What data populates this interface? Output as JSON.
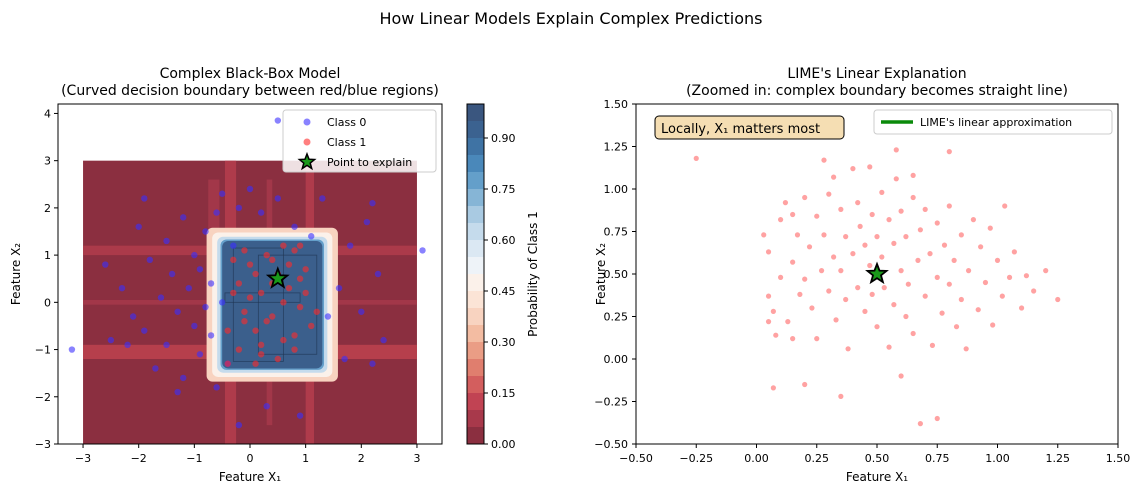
{
  "figure": {
    "suptitle": "How Linear Models Explain Complex Predictions"
  },
  "chart_data": [
    {
      "type": "scatter",
      "title_line1": "Complex Black-Box Model",
      "title_line2": "(Curved decision boundary between red/blue regions)",
      "xlabel": "Feature X₁",
      "ylabel": "Feature X₂",
      "xlim": [
        -3.45,
        3.45
      ],
      "ylim": [
        -3.0,
        4.2
      ],
      "xticks": [
        -3,
        -2,
        -1,
        0,
        1,
        2,
        3
      ],
      "yticks": [
        -3,
        -2,
        -1,
        0,
        1,
        2,
        3,
        4
      ],
      "contour_fill": {
        "description": "filled contour of P(class 1), low = dark red, high = dark blue",
        "x_range": [
          -3,
          3
        ],
        "y_range": [
          -3,
          3
        ],
        "high_region": {
          "x": [
            -0.5,
            1.3
          ],
          "y": [
            -1.4,
            1.3
          ]
        },
        "high_color": "#3b5f8c",
        "low_color": "#8b2f40"
      },
      "colorbar": {
        "label": "Probability of Class 1",
        "ticks": [
          "0.00",
          "0.15",
          "0.30",
          "0.45",
          "0.60",
          "0.75",
          "0.90"
        ],
        "levels": [
          0.0,
          0.05,
          0.1,
          0.15,
          0.2,
          0.25,
          0.3,
          0.35,
          0.4,
          0.45,
          0.5,
          0.55,
          0.6,
          0.65,
          0.7,
          0.75,
          0.8,
          0.85,
          0.9,
          0.95,
          1.0
        ],
        "colors": [
          "#8b2f40",
          "#a8394b",
          "#c14353",
          "#d35e5e",
          "#e07e6e",
          "#ea9d85",
          "#f3bca2",
          "#f8d3c0",
          "#fbe4d6",
          "#fbf1ea",
          "#eef3f8",
          "#dbe8f3",
          "#c5dbec",
          "#a9cae2",
          "#86b5d6",
          "#649fca",
          "#4a88ba",
          "#3f73a4",
          "#3b6290",
          "#3a567f"
        ]
      },
      "legend": {
        "placement": "upper right",
        "entries": [
          "Class 0",
          "Class 1",
          "Point to explain"
        ]
      },
      "series": [
        {
          "name": "Class 0",
          "color": "#3b2fff",
          "points": [
            [
              -3.2,
              -1.0
            ],
            [
              3.1,
              1.1
            ],
            [
              0.5,
              3.85
            ],
            [
              -2.6,
              0.8
            ],
            [
              -2.5,
              -0.8
            ],
            [
              -2.3,
              0.3
            ],
            [
              -2.1,
              -0.3
            ],
            [
              -2.0,
              1.6
            ],
            [
              -1.9,
              -0.6
            ],
            [
              -1.8,
              0.9
            ],
            [
              -1.7,
              -1.4
            ],
            [
              -1.6,
              0.1
            ],
            [
              -1.5,
              1.3
            ],
            [
              -1.5,
              -0.9
            ],
            [
              -1.4,
              0.6
            ],
            [
              -1.3,
              -0.2
            ],
            [
              -1.2,
              1.8
            ],
            [
              -1.2,
              -1.6
            ],
            [
              -1.1,
              0.3
            ],
            [
              -1.0,
              -0.5
            ],
            [
              -1.0,
              1.0
            ],
            [
              -0.9,
              -1.1
            ],
            [
              -0.9,
              0.7
            ],
            [
              -0.8,
              -0.1
            ],
            [
              -0.8,
              1.5
            ],
            [
              -0.7,
              -0.7
            ],
            [
              -0.7,
              0.4
            ],
            [
              -0.6,
              1.9
            ],
            [
              -0.6,
              -1.8
            ],
            [
              -0.5,
              0.0
            ],
            [
              -0.5,
              2.3
            ],
            [
              -0.4,
              -1.3
            ],
            [
              -0.3,
              1.2
            ],
            [
              -0.2,
              2.0
            ],
            [
              0.0,
              2.4
            ],
            [
              0.2,
              1.9
            ],
            [
              0.3,
              -2.2
            ],
            [
              0.5,
              2.2
            ],
            [
              0.8,
              1.6
            ],
            [
              1.1,
              1.4
            ],
            [
              1.3,
              2.2
            ],
            [
              1.4,
              -0.3
            ],
            [
              1.6,
              0.3
            ],
            [
              1.7,
              -1.2
            ],
            [
              1.8,
              1.2
            ],
            [
              2.0,
              -0.2
            ],
            [
              2.1,
              1.7
            ],
            [
              2.2,
              -1.3
            ],
            [
              2.3,
              0.6
            ],
            [
              2.4,
              -0.8
            ],
            [
              2.2,
              2.1
            ],
            [
              -1.9,
              2.2
            ],
            [
              -2.2,
              -0.9
            ],
            [
              -1.3,
              -1.9
            ],
            [
              -0.2,
              -2.6
            ],
            [
              0.9,
              -2.4
            ]
          ]
        },
        {
          "name": "Class 1",
          "color": "#ff2a2a",
          "points": [
            [
              -0.3,
              0.9
            ],
            [
              -0.2,
              0.4
            ],
            [
              -0.1,
              -0.2
            ],
            [
              0.0,
              0.8
            ],
            [
              0.1,
              -0.6
            ],
            [
              0.2,
              0.2
            ],
            [
              0.3,
              1.0
            ],
            [
              0.4,
              -0.3
            ],
            [
              0.5,
              0.6
            ],
            [
              0.6,
              -0.8
            ],
            [
              0.7,
              0.3
            ],
            [
              0.8,
              1.1
            ],
            [
              0.9,
              -0.1
            ],
            [
              1.0,
              0.7
            ],
            [
              1.1,
              -0.5
            ],
            [
              -0.4,
              -0.6
            ],
            [
              -0.2,
              -1.0
            ],
            [
              0.0,
              0.1
            ],
            [
              0.2,
              -1.1
            ],
            [
              0.4,
              0.9
            ],
            [
              0.6,
              0.0
            ],
            [
              0.8,
              -0.7
            ],
            [
              1.0,
              0.2
            ],
            [
              -0.1,
              1.1
            ],
            [
              0.3,
              -0.4
            ],
            [
              0.5,
              -1.2
            ],
            [
              0.7,
              0.8
            ],
            [
              0.9,
              0.5
            ],
            [
              -0.3,
              0.2
            ],
            [
              0.1,
              0.6
            ],
            [
              1.2,
              -0.2
            ],
            [
              0.6,
              1.2
            ],
            [
              0.2,
              -0.9
            ],
            [
              -0.4,
              -1.3
            ],
            [
              0.8,
              -1.0
            ],
            [
              0.4,
              0.4
            ],
            [
              -0.1,
              -0.4
            ],
            [
              0.9,
              1.2
            ],
            [
              0.1,
              -1.3
            ]
          ]
        },
        {
          "name": "Point to explain",
          "color": "#1a9a1a",
          "points": [
            [
              0.5,
              0.5
            ]
          ]
        }
      ]
    },
    {
      "type": "scatter",
      "title_line1": "LIME's Linear Explanation",
      "title_line2": "(Zoomed in: complex boundary becomes straight line)",
      "xlabel": "Feature X₁",
      "ylabel": "Feature X₂",
      "xlim": [
        -0.5,
        1.5
      ],
      "ylim": [
        -0.5,
        1.5
      ],
      "xticks": [
        "−0.50",
        "−0.25",
        "0.00",
        "0.25",
        "0.50",
        "0.75",
        "1.00",
        "1.25",
        "1.50"
      ],
      "yticks": [
        "−0.50",
        "−0.25",
        "0.00",
        "0.25",
        "0.50",
        "0.75",
        "1.00",
        "1.25",
        "1.50"
      ],
      "annotation": "Locally, X₁ matters most",
      "legend": {
        "placement": "upper right",
        "entries": [
          "LIME's linear approximation"
        ]
      },
      "series": [
        {
          "name": "Class 1",
          "color": "#ff5555",
          "points": [
            [
              -0.25,
              1.18
            ],
            [
              0.03,
              0.73
            ],
            [
              0.05,
              0.63
            ],
            [
              0.05,
              0.37
            ],
            [
              0.07,
              0.28
            ],
            [
              0.08,
              0.14
            ],
            [
              0.1,
              0.82
            ],
            [
              0.1,
              0.48
            ],
            [
              0.12,
              0.92
            ],
            [
              0.13,
              0.22
            ],
            [
              0.15,
              0.57
            ],
            [
              0.15,
              0.12
            ],
            [
              0.17,
              0.73
            ],
            [
              0.18,
              0.38
            ],
            [
              0.2,
              0.95
            ],
            [
              0.2,
              0.47
            ],
            [
              0.22,
              0.66
            ],
            [
              0.23,
              0.3
            ],
            [
              0.25,
              0.84
            ],
            [
              0.25,
              0.12
            ],
            [
              0.27,
              0.52
            ],
            [
              0.28,
              0.73
            ],
            [
              0.3,
              0.97
            ],
            [
              0.3,
              0.4
            ],
            [
              0.32,
              1.07
            ],
            [
              0.32,
              0.6
            ],
            [
              0.33,
              0.23
            ],
            [
              0.35,
              0.88
            ],
            [
              0.35,
              0.52
            ],
            [
              0.37,
              0.72
            ],
            [
              0.37,
              0.35
            ],
            [
              0.38,
              0.06
            ],
            [
              0.4,
              1.12
            ],
            [
              0.4,
              0.62
            ],
            [
              0.42,
              0.92
            ],
            [
              0.42,
              0.42
            ],
            [
              0.43,
              0.78
            ],
            [
              0.45,
              0.28
            ],
            [
              0.45,
              0.67
            ],
            [
              0.47,
              1.13
            ],
            [
              0.47,
              0.55
            ],
            [
              0.48,
              0.85
            ],
            [
              0.48,
              0.38
            ],
            [
              0.5,
              0.72
            ],
            [
              0.5,
              0.19
            ],
            [
              0.52,
              0.98
            ],
            [
              0.52,
              0.6
            ],
            [
              0.53,
              0.42
            ],
            [
              0.55,
              0.82
            ],
            [
              0.55,
              0.07
            ],
            [
              0.57,
              0.68
            ],
            [
              0.57,
              0.32
            ],
            [
              0.58,
              1.06
            ],
            [
              0.6,
              0.52
            ],
            [
              0.6,
              0.87
            ],
            [
              0.62,
              0.25
            ],
            [
              0.62,
              0.72
            ],
            [
              0.63,
              0.44
            ],
            [
              0.65,
              0.95
            ],
            [
              0.65,
              0.15
            ],
            [
              0.67,
              0.58
            ],
            [
              0.68,
              0.76
            ],
            [
              0.7,
              0.37
            ],
            [
              0.7,
              0.88
            ],
            [
              0.72,
              0.62
            ],
            [
              0.73,
              0.08
            ],
            [
              0.75,
              0.48
            ],
            [
              0.75,
              0.8
            ],
            [
              0.77,
              0.27
            ],
            [
              0.78,
              0.67
            ],
            [
              0.8,
              0.9
            ],
            [
              0.8,
              0.44
            ],
            [
              0.82,
              0.58
            ],
            [
              0.83,
              0.19
            ],
            [
              0.85,
              0.73
            ],
            [
              0.85,
              0.35
            ],
            [
              0.87,
              0.06
            ],
            [
              0.88,
              0.52
            ],
            [
              0.9,
              0.82
            ],
            [
              0.92,
              0.29
            ],
            [
              0.93,
              0.66
            ],
            [
              0.95,
              0.45
            ],
            [
              0.97,
              0.77
            ],
            [
              0.98,
              0.2
            ],
            [
              1.0,
              0.58
            ],
            [
              1.02,
              0.37
            ],
            [
              1.03,
              0.9
            ],
            [
              1.05,
              0.48
            ],
            [
              1.07,
              0.63
            ],
            [
              1.1,
              0.3
            ],
            [
              1.12,
              0.49
            ],
            [
              1.15,
              0.4
            ],
            [
              1.2,
              0.52
            ],
            [
              1.25,
              0.35
            ],
            [
              0.05,
              0.22
            ],
            [
              0.15,
              0.85
            ],
            [
              0.28,
              1.17
            ],
            [
              0.58,
              1.23
            ],
            [
              0.8,
              1.22
            ],
            [
              0.65,
              1.08
            ],
            [
              0.35,
              -0.22
            ],
            [
              0.68,
              -0.38
            ],
            [
              0.2,
              -0.15
            ],
            [
              0.07,
              -0.17
            ],
            [
              0.6,
              -0.1
            ],
            [
              0.75,
              -0.35
            ]
          ]
        },
        {
          "name": "Point to explain",
          "color": "#1a9a1a",
          "points": [
            [
              0.5,
              0.5
            ]
          ]
        }
      ]
    }
  ]
}
